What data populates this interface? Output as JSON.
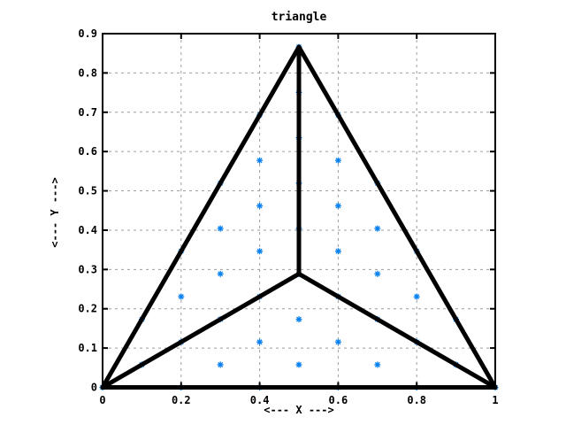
{
  "window": {
    "background": "#ffffff"
  },
  "chart_data": {
    "type": "scatter",
    "title": "triangle",
    "xlabel": "<--- X --->",
    "ylabel": "<--- Y --->",
    "xlim": [
      0,
      1
    ],
    "ylim": [
      0,
      0.9
    ],
    "grid": true,
    "legend": "none",
    "marker": "asterisk",
    "xticks": [
      0,
      0.2,
      0.4,
      0.6,
      0.8,
      1
    ],
    "xtick_labels": [
      "0",
      "0.2",
      "0.4",
      "0.6",
      "0.8",
      "1"
    ],
    "yticks": [
      0,
      0.1,
      0.2,
      0.3,
      0.4,
      0.5,
      0.6,
      0.7,
      0.8,
      0.9
    ],
    "ytick_labels": [
      "0",
      "0.1",
      "0.2",
      "0.3",
      "0.4",
      "0.5",
      "0.6",
      "0.7",
      "0.8",
      "0.9"
    ],
    "triangle_vertices": [
      [
        0,
        0
      ],
      [
        1,
        0
      ],
      [
        0.5,
        0.866
      ]
    ],
    "centroid": [
      0.5,
      0.2887
    ],
    "lines": [
      [
        [
          0,
          0
        ],
        [
          1,
          0
        ]
      ],
      [
        [
          1,
          0
        ],
        [
          0.5,
          0.866
        ]
      ],
      [
        [
          0.5,
          0.866
        ],
        [
          0,
          0
        ]
      ],
      [
        [
          0,
          0
        ],
        [
          0.5,
          0.2887
        ]
      ],
      [
        [
          1,
          0
        ],
        [
          0.5,
          0.2887
        ]
      ],
      [
        [
          0.5,
          0.866
        ],
        [
          0.5,
          0.2887
        ]
      ]
    ],
    "points": [
      [
        0,
        0
      ],
      [
        0.2,
        0
      ],
      [
        0.4,
        0
      ],
      [
        0.6,
        0
      ],
      [
        0.8,
        0
      ],
      [
        1,
        0
      ],
      [
        0.1,
        0.0577
      ],
      [
        0.3,
        0.0577
      ],
      [
        0.5,
        0.0577
      ],
      [
        0.7,
        0.0577
      ],
      [
        0.9,
        0.0577
      ],
      [
        0.2,
        0.1155
      ],
      [
        0.4,
        0.1155
      ],
      [
        0.6,
        0.1155
      ],
      [
        0.8,
        0.1155
      ],
      [
        0.1,
        0.1732
      ],
      [
        0.3,
        0.1732
      ],
      [
        0.5,
        0.1732
      ],
      [
        0.7,
        0.1732
      ],
      [
        0.9,
        0.1732
      ],
      [
        0.2,
        0.2309
      ],
      [
        0.4,
        0.2309
      ],
      [
        0.6,
        0.2309
      ],
      [
        0.8,
        0.2309
      ],
      [
        0.3,
        0.2887
      ],
      [
        0.5,
        0.2887
      ],
      [
        0.7,
        0.2887
      ],
      [
        0.2,
        0.3464
      ],
      [
        0.4,
        0.3464
      ],
      [
        0.6,
        0.3464
      ],
      [
        0.8,
        0.3464
      ],
      [
        0.3,
        0.4041
      ],
      [
        0.5,
        0.4041
      ],
      [
        0.7,
        0.4041
      ],
      [
        0.4,
        0.4619
      ],
      [
        0.6,
        0.4619
      ],
      [
        0.3,
        0.5196
      ],
      [
        0.5,
        0.5196
      ],
      [
        0.7,
        0.5196
      ],
      [
        0.4,
        0.5774
      ],
      [
        0.6,
        0.5774
      ],
      [
        0.5,
        0.6351
      ],
      [
        0.4,
        0.6928
      ],
      [
        0.6,
        0.6928
      ],
      [
        0.5,
        0.7506
      ],
      [
        0.5,
        0.866
      ]
    ],
    "colors": {
      "point": "#0880f0",
      "line": "#000000",
      "grid": "#9e9e9e",
      "border": "#000000",
      "text": "#000000",
      "background": "#ffffff"
    }
  }
}
